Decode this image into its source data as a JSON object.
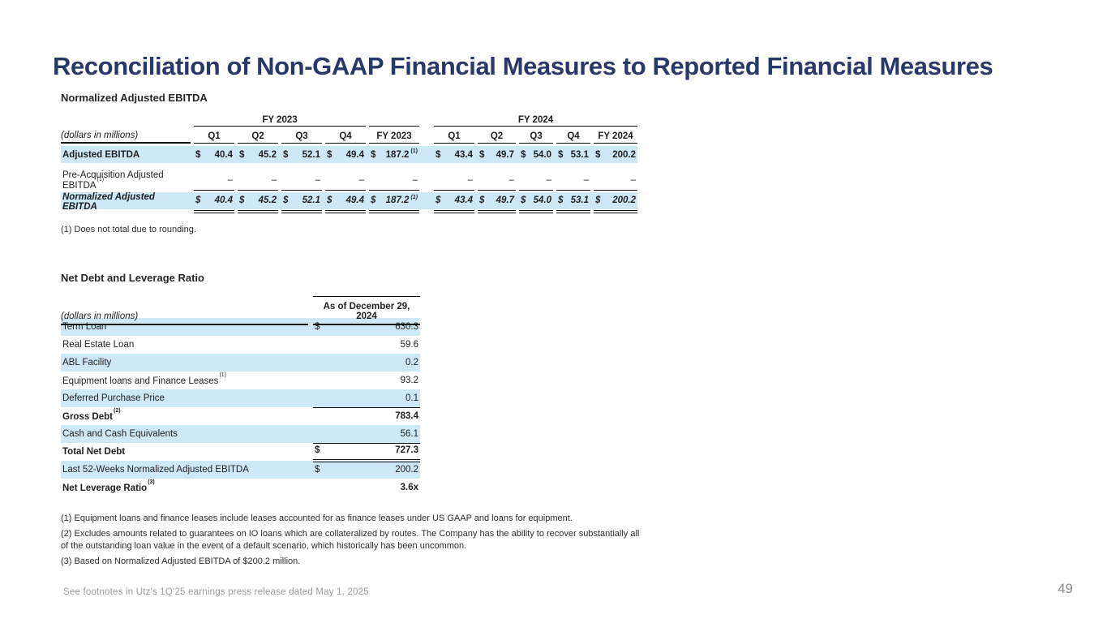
{
  "slide": {
    "title": "Reconciliation of Non-GAAP Financial Measures to Reported Financial Measures",
    "footer": "See footnotes in Utz's 1Q'25 earnings press release dated May 1, 2025",
    "page_number": "49"
  },
  "colors": {
    "accent_navy": "#27386b",
    "row_highlight": "#cde9f8",
    "footer_gray": "#9a9a9a"
  },
  "ebitda_table": {
    "title": "Normalized Adjusted EBITDA",
    "units_label": "(dollars in millions)",
    "spanners": [
      {
        "label": "FY 2023",
        "cols": "quarters_2023"
      },
      {
        "label": "",
        "cols": "fy2023_total"
      },
      {
        "label": "FY 2024",
        "cols": "all_2024"
      }
    ],
    "columns": [
      "Q1",
      "Q2",
      "Q3",
      "Q4",
      "FY 2023",
      "Q1",
      "Q2",
      "Q3",
      "Q4",
      "FY 2024"
    ],
    "rows": [
      {
        "label": "Adjusted EBITDA",
        "label_sup": "",
        "style": "bold",
        "highlight": true,
        "dollar": true,
        "rule": "none",
        "values": [
          "40.4",
          "45.2",
          "52.1",
          "49.4",
          "187.2",
          "43.4",
          "49.7",
          "54.0",
          "53.1",
          "200.2"
        ],
        "value_sups": {
          "4": "(1)"
        }
      },
      {
        "label": "Pre-Acquisition Adjusted EBITDA",
        "label_sup": "(1)",
        "style": "regular",
        "highlight": false,
        "dollar": false,
        "rule": "single",
        "values": [
          "–",
          "–",
          "–",
          "–",
          "–",
          "–",
          "–",
          "–",
          "–",
          "–"
        ],
        "value_sups": {}
      },
      {
        "label": "Normalized Adjusted EBITDA",
        "label_sup": "",
        "style": "bolditalic",
        "highlight": true,
        "dollar": true,
        "rule": "double",
        "values": [
          "40.4",
          "45.2",
          "52.1",
          "49.4",
          "187.2",
          "43.4",
          "49.7",
          "54.0",
          "53.1",
          "200.2"
        ],
        "value_sups": {
          "4": "(1)"
        }
      }
    ],
    "footnote": "(1) Does not total due to rounding."
  },
  "net_debt_table": {
    "title": "Net Debt and Leverage Ratio",
    "units_label": "(dollars in millions)",
    "column_header": "As of December 29, 2024",
    "rows": [
      {
        "label": "Term Loan",
        "label_sup": "",
        "dollar": "$",
        "value": "630.3",
        "bold": false,
        "highlight": true,
        "rule": "none"
      },
      {
        "label": "Real Estate Loan",
        "label_sup": "",
        "dollar": "",
        "value": "59.6",
        "bold": false,
        "highlight": false,
        "rule": "none"
      },
      {
        "label": "ABL Facility",
        "label_sup": "",
        "dollar": "",
        "value": "0.2",
        "bold": false,
        "highlight": true,
        "rule": "none"
      },
      {
        "label": "Equipment loans and Finance Leases",
        "label_sup": "(1)",
        "dollar": "",
        "value": "93.2",
        "bold": false,
        "highlight": false,
        "rule": "none"
      },
      {
        "label": "Deferred Purchase Price",
        "label_sup": "",
        "dollar": "",
        "value": "0.1",
        "bold": false,
        "highlight": true,
        "rule": "single"
      },
      {
        "label": "Gross Debt",
        "label_sup": "(2)",
        "dollar": "",
        "value": "783.4",
        "bold": true,
        "highlight": false,
        "rule": "none"
      },
      {
        "label": "Cash and Cash Equivalents",
        "label_sup": "",
        "dollar": "",
        "value": "56.1",
        "bold": false,
        "highlight": true,
        "rule": "single"
      },
      {
        "label": "Total Net Debt",
        "label_sup": "",
        "dollar": "$",
        "value": "727.3",
        "bold": true,
        "highlight": false,
        "rule": "double"
      },
      {
        "label": "Last 52-Weeks Normalized Adjusted EBITDA",
        "label_sup": "",
        "dollar": "$",
        "value": "200.2",
        "bold": false,
        "highlight": true,
        "rule": "none"
      },
      {
        "label": "Net Leverage Ratio",
        "label_sup": "(3)",
        "dollar": "",
        "value": "3.6x",
        "bold": true,
        "highlight": false,
        "rule": "none"
      }
    ],
    "footnotes": [
      "(1) Equipment loans and finance leases include leases accounted for as finance leases under US GAAP and loans for equipment.",
      "(2) Excludes amounts related to guarantees on IO loans which are collateralized by routes. The Company has the ability to recover substantially all of the outstanding loan value in the event of a default scenario, which historically has been uncommon.",
      "(3) Based on Normalized Adjusted EBITDA of $200.2 million."
    ]
  }
}
